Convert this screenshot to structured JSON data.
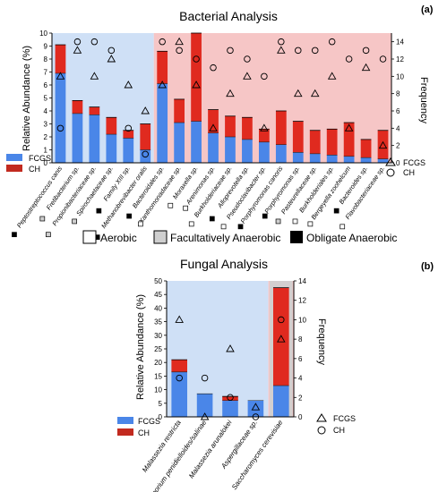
{
  "panel_a": {
    "letter": "(a)",
    "legend_fcgs": "FCGS",
    "legend_ch": "CH"
  },
  "panel_b": {
    "letter": "(b)",
    "legend_fcgs": "FCGS",
    "legend_ch": "CH"
  },
  "oxygen_legend": {
    "aerobic": "Aerobic",
    "facultative": "Facultatively Anaerobic",
    "obligate": "Obligate Anaerobic"
  },
  "colors": {
    "fcgs": "#4a86e8",
    "ch": "#e02a1f",
    "ch_dark": "#b8281d",
    "blue_bg": "#cfe0f6",
    "pink_bg": "#f6c6c6",
    "grey_bg": "#cfcfcf",
    "axis": "#000000"
  },
  "chart_data": [
    {
      "type": "bar",
      "title": "Bacterial Analysis",
      "ylabel": "Relative Abundance (%)",
      "y2label": "Frequency",
      "ylim": [
        0,
        10
      ],
      "y2lim": [
        0,
        15
      ],
      "yticks": [
        0,
        1,
        2,
        3,
        4,
        5,
        6,
        7,
        8,
        9,
        10
      ],
      "y2ticks": [
        0,
        2,
        4,
        6,
        8,
        10,
        12,
        14
      ],
      "categories": [
        "Peptostreptococcus canis",
        "Fretibacterium sp.",
        "Propionibacteriaceae sp.",
        "Spirochaetaceae sp.",
        "Family XIII sp.",
        "Methanobrevibacter oralis",
        "Bacteroidales sp.",
        "Xanthomonadaceae sp.",
        "Moraxella sp.",
        "Arenimonas sp.",
        "Burkholderiaceae sp.",
        "Alloprevotella sp.",
        "Pseudoclavibacter sp.",
        "Porphyromonas canoris",
        "Porphyromonas sp.",
        "Pasteurellaceae sp.",
        "Burkholderiales sp.",
        "Bergeyella zoohelcum",
        "Bacteroides sp.",
        "Flavobacteriaceae sp."
      ],
      "oxygen": [
        "obligate",
        "facultative",
        "facultative",
        "facultative",
        "obligate",
        "obligate",
        "obligate",
        "aerobic",
        "aerobic",
        "aerobic",
        "aerobic",
        "obligate",
        "aerobic",
        "obligate",
        "obligate",
        "facultative",
        "aerobic",
        "aerobic",
        "obligate",
        "aerobic"
      ],
      "group_split_index": 6,
      "series": [
        {
          "name": "FCGS",
          "values": [
            6.9,
            3.8,
            3.7,
            2.2,
            1.9,
            1.0,
            6.1,
            3.1,
            3.2,
            2.3,
            2.0,
            1.8,
            1.6,
            1.4,
            0.8,
            0.7,
            0.6,
            0.5,
            0.4,
            0.3
          ]
        },
        {
          "name": "CH",
          "values": [
            2.2,
            1.0,
            0.6,
            1.3,
            0.6,
            2.0,
            2.5,
            1.8,
            6.8,
            1.8,
            1.6,
            1.7,
            1.0,
            2.6,
            2.4,
            1.8,
            2.0,
            2.6,
            1.4,
            2.2
          ]
        }
      ],
      "frequency": [
        {
          "name": "FCGS",
          "marker": "triangle",
          "values": [
            10,
            13,
            10,
            12,
            9,
            6,
            9,
            14,
            9,
            4,
            8,
            10,
            4,
            13,
            8,
            8,
            10,
            4,
            11,
            2
          ]
        },
        {
          "name": "CH",
          "marker": "circle",
          "values": [
            4,
            14,
            14,
            13,
            4,
            1,
            14,
            13,
            12,
            11,
            13,
            12,
            10,
            14,
            13,
            13,
            14,
            12,
            13,
            12
          ]
        }
      ]
    },
    {
      "type": "bar",
      "title": "Fungal Analysis",
      "ylabel": "Relative Abundance (%)",
      "y2label": "Frequency",
      "ylim": [
        0,
        50
      ],
      "y2lim": [
        0,
        14
      ],
      "yticks": [
        0,
        5,
        10,
        15,
        20,
        25,
        30,
        35,
        40,
        45,
        50
      ],
      "y2ticks": [
        0,
        2,
        4,
        6,
        8,
        10,
        12,
        14
      ],
      "categories": [
        "Malassezia restricta",
        "Cladosporium penidielloides/salinae",
        "Malassezia arunalokei",
        "Aspergillaceae sp.",
        "Saccharomyces cerevisiae"
      ],
      "group_split_index": 4,
      "series": [
        {
          "name": "FCGS",
          "values": [
            16.5,
            8.5,
            6.0,
            6.0,
            11.5
          ]
        },
        {
          "name": "CH",
          "values": [
            4.5,
            0.0,
            1.5,
            0.0,
            36.0
          ]
        }
      ],
      "frequency": [
        {
          "name": "FCGS",
          "marker": "triangle",
          "values": [
            10,
            0,
            7,
            1,
            8
          ]
        },
        {
          "name": "CH",
          "marker": "circle",
          "values": [
            4,
            4,
            2,
            0,
            10
          ]
        }
      ]
    }
  ]
}
